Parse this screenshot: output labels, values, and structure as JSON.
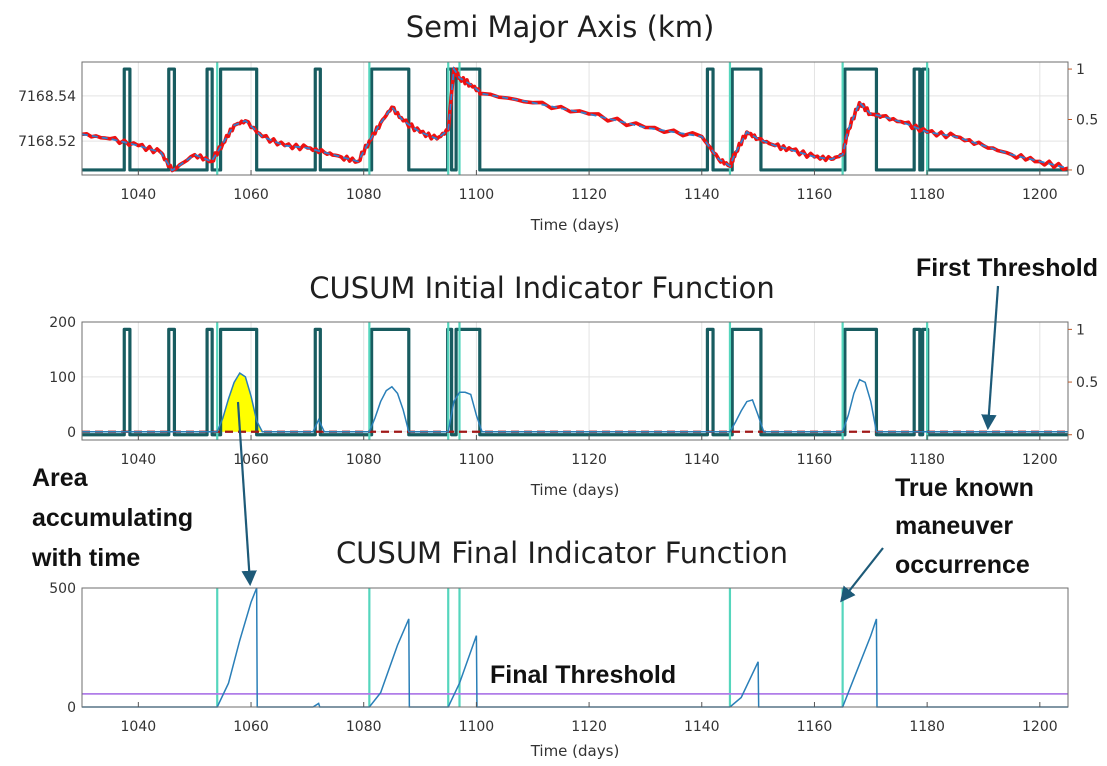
{
  "colors": {
    "signal": "#185c60",
    "maneuver": "#55d6bd",
    "cusum": "#2a7fb8",
    "raw": "#ee1111",
    "smooth_dash": "#2f7fcf",
    "threshold_dashed": "#a01818",
    "final_threshold": "#b07de8",
    "area_fill": "#ffff00",
    "left_axis": "#2a6fa8",
    "right_axis": "#c05a28",
    "arrow": "#1d5a78"
  },
  "annotations": {
    "first_threshold": "First Threshold",
    "area_line1": "Area",
    "area_line2": "accumulating",
    "area_line3": "with time",
    "true_line1": "True known",
    "true_line2": "maneuver",
    "true_line3": "occurrence",
    "final_threshold": "Final Threshold"
  },
  "chart_data": [
    {
      "type": "line",
      "title": "Semi Major Axis (km)",
      "xlabel": "Time (days)",
      "ylabel": "",
      "xlim": [
        1030,
        1205
      ],
      "ylim": [
        7168.505,
        7168.555
      ],
      "y2lim": [
        -0.05,
        1.07
      ],
      "grid": true,
      "x_ticks": [
        1040,
        1060,
        1080,
        1100,
        1120,
        1140,
        1160,
        1180,
        1200
      ],
      "y_ticks": [
        {
          "value": 7168.52,
          "label": "7168.52"
        },
        {
          "value": 7168.54,
          "label": "7168.54"
        }
      ],
      "y2_ticks": [
        {
          "value": 0,
          "label": "0"
        },
        {
          "value": 0.5,
          "label": "0.5"
        },
        {
          "value": 1,
          "label": "1"
        }
      ],
      "maneuvers": [
        1054,
        1081,
        1095,
        1097,
        1145,
        1165,
        1180
      ],
      "detection_windows": [
        [
          1037.5,
          1038.5
        ],
        [
          1045.4,
          1046.4
        ],
        [
          1052.2,
          1053.1
        ],
        [
          1054.6,
          1061
        ],
        [
          1071.4,
          1072.3
        ],
        [
          1081.4,
          1088
        ],
        [
          1094.9,
          1095.6
        ],
        [
          1096.4,
          1100.6
        ],
        [
          1141,
          1142
        ],
        [
          1145.4,
          1150.5
        ],
        [
          1165.4,
          1171
        ],
        [
          1177.7,
          1178.7
        ],
        [
          1179.2,
          1180.1
        ]
      ],
      "series": [
        {
          "role": "raw",
          "x": [
            1030,
            1035,
            1040,
            1044,
            1046,
            1050,
            1053,
            1055,
            1057,
            1059,
            1062,
            1066,
            1070,
            1073,
            1076,
            1079,
            1081,
            1083,
            1085,
            1087,
            1090,
            1093,
            1095,
            1096,
            1097,
            1099,
            1101,
            1110,
            1120,
            1130,
            1140,
            1143,
            1145,
            1146,
            1148,
            1150,
            1153,
            1156,
            1160,
            1163,
            1165,
            1166,
            1168,
            1170,
            1172,
            1176,
            1180,
            1185,
            1190,
            1195,
            1200,
            1205
          ],
          "y": [
            7168.523,
            7168.521,
            7168.518,
            7168.515,
            7168.507,
            7168.514,
            7168.511,
            7168.519,
            7168.527,
            7168.529,
            7168.522,
            7168.518,
            7168.517,
            7168.515,
            7168.513,
            7168.511,
            7168.52,
            7168.528,
            7168.535,
            7168.529,
            7168.524,
            7168.521,
            7168.525,
            7168.552,
            7168.548,
            7168.545,
            7168.541,
            7168.537,
            7168.532,
            7168.526,
            7168.522,
            7168.512,
            7168.509,
            7168.515,
            7168.524,
            7168.521,
            7168.518,
            7168.516,
            7168.513,
            7168.512,
            7168.514,
            7168.525,
            7168.537,
            7168.532,
            7168.531,
            7168.528,
            7168.524,
            7168.522,
            7168.518,
            7168.514,
            7168.511,
            7168.508
          ]
        },
        {
          "role": "maneuver_indicator",
          "values_range": [
            0,
            1
          ]
        }
      ]
    },
    {
      "type": "line",
      "title": "CUSUM Initial Indicator Function",
      "xlabel": "Time (days)",
      "ylabel": "",
      "xlim": [
        1030,
        1205
      ],
      "ylim": [
        -15,
        200
      ],
      "y2lim": [
        -0.05,
        1.07
      ],
      "grid": true,
      "x_ticks": [
        1040,
        1060,
        1080,
        1100,
        1120,
        1140,
        1160,
        1180,
        1200
      ],
      "y_ticks": [
        {
          "value": 0,
          "label": "0"
        },
        {
          "value": 100,
          "label": "100"
        },
        {
          "value": 200,
          "label": "200"
        }
      ],
      "y2_ticks": [
        {
          "value": 0,
          "label": "0"
        },
        {
          "value": 0.5,
          "label": "0.5"
        },
        {
          "value": 1,
          "label": "1"
        }
      ],
      "maneuvers": [
        1054,
        1081,
        1095,
        1097,
        1145,
        1165,
        1180
      ],
      "detection_windows": [
        [
          1037.5,
          1038.5
        ],
        [
          1045.4,
          1046.4
        ],
        [
          1052.2,
          1053.1
        ],
        [
          1054.6,
          1061
        ],
        [
          1071.4,
          1072.3
        ],
        [
          1081.4,
          1088
        ],
        [
          1094.9,
          1095.6
        ],
        [
          1096.4,
          1100.6
        ],
        [
          1141,
          1142
        ],
        [
          1145.4,
          1150.5
        ],
        [
          1165.4,
          1171
        ],
        [
          1177.7,
          1178.7
        ],
        [
          1179.2,
          1180.1
        ]
      ],
      "first_threshold": 0,
      "series": [
        {
          "role": "cusum_initial",
          "x": [
            1030,
            1054,
            1055,
            1056,
            1057,
            1058,
            1059,
            1060,
            1061,
            1062,
            1071,
            1072,
            1073,
            1081,
            1082,
            1083,
            1084,
            1085,
            1086,
            1087,
            1088,
            1095,
            1096,
            1097,
            1098,
            1099,
            1100,
            1101,
            1145,
            1146,
            1147,
            1148,
            1149,
            1150,
            1151,
            1165,
            1166,
            1167,
            1168,
            1169,
            1170,
            1171,
            1180,
            1205
          ],
          "y": [
            0,
            0,
            25,
            60,
            90,
            107,
            100,
            65,
            20,
            0,
            0,
            22,
            0,
            0,
            25,
            55,
            75,
            82,
            70,
            40,
            0,
            0,
            55,
            72,
            72,
            68,
            30,
            0,
            0,
            18,
            38,
            55,
            58,
            30,
            0,
            0,
            30,
            70,
            95,
            90,
            55,
            0,
            0,
            0
          ]
        }
      ]
    },
    {
      "type": "line",
      "title": "CUSUM Final Indicator Function",
      "xlabel": "Time (days)",
      "ylabel": "",
      "xlim": [
        1030,
        1205
      ],
      "ylim": [
        0,
        500
      ],
      "grid": false,
      "x_ticks": [
        1040,
        1060,
        1080,
        1100,
        1120,
        1140,
        1160,
        1180,
        1200
      ],
      "y_ticks": [
        {
          "value": 0,
          "label": "0"
        },
        {
          "value": 500,
          "label": "500"
        }
      ],
      "maneuvers": [
        1054,
        1081,
        1095,
        1097,
        1145,
        1165
      ],
      "final_threshold": 55,
      "series": [
        {
          "role": "cusum_final",
          "x": [
            1030,
            1054,
            1056,
            1058,
            1060,
            1061,
            1061.1,
            1071,
            1072,
            1072.2,
            1081,
            1083,
            1086,
            1088,
            1088.1,
            1095,
            1097,
            1100,
            1100.1,
            1145,
            1147,
            1150,
            1150.1,
            1165,
            1167,
            1170,
            1171,
            1171.1,
            1205
          ],
          "y": [
            0,
            0,
            100,
            280,
            440,
            500,
            0,
            0,
            15,
            0,
            0,
            60,
            260,
            370,
            0,
            0,
            100,
            300,
            0,
            0,
            40,
            190,
            0,
            0,
            120,
            300,
            370,
            0,
            0
          ]
        }
      ]
    }
  ]
}
